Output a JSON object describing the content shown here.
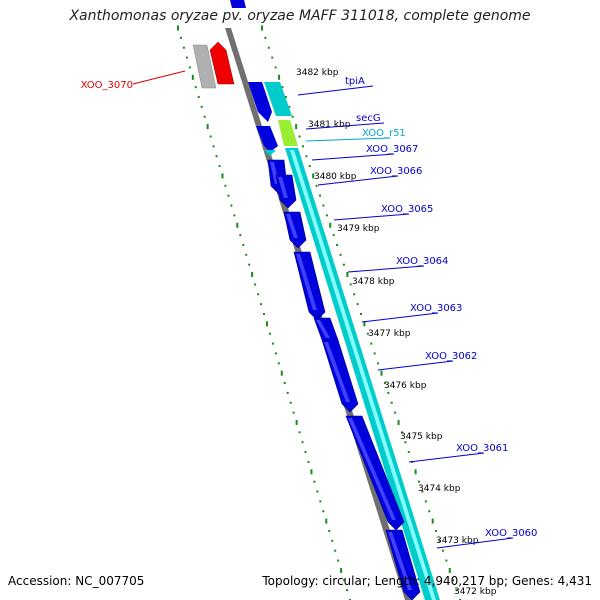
{
  "title": "Xanthomonas oryzae pv. oryzae MAFF 311018, complete genome",
  "accession": "Accession: NC_007705",
  "stats": "Topology: circular; Length: 4,940,217 bp; Genes: 4,431",
  "colors": {
    "cds": "#0000dd",
    "cds_dark": "#000088",
    "cds_light": "#4040ff",
    "rna": "#00cccc",
    "rna_light": "#88ffff",
    "gene_label": "#0000cc",
    "rna_label": "#00aacc",
    "highlight_label": "#dd0000",
    "highlight": "#ee0000",
    "grey": "#b0b0b0",
    "tick": "#1a8a1a",
    "backbone": "#707070",
    "secG": "#99ee33"
  },
  "scale_labels": [
    "3482 kbp",
    "3481 kbp",
    "3480 kbp",
    "3479 kbp",
    "3478 kbp",
    "3477 kbp",
    "3476 kbp",
    "3475 kbp",
    "3474 kbp",
    "3473 kbp",
    "3472 kbp"
  ],
  "genes": [
    {
      "label": "XOO_3070",
      "type": "highlight"
    },
    {
      "label": "tpiA",
      "type": "cds"
    },
    {
      "label": "secG",
      "type": "secG"
    },
    {
      "label": "XOO_r51",
      "type": "rna"
    },
    {
      "label": "XOO_3067",
      "type": "cds"
    },
    {
      "label": "XOO_3066",
      "type": "cds"
    },
    {
      "label": "XOO_3065",
      "type": "cds"
    },
    {
      "label": "XOO_3064",
      "type": "cds"
    },
    {
      "label": "XOO_3063",
      "type": "cds"
    },
    {
      "label": "XOO_3062",
      "type": "cds"
    },
    {
      "label": "XOO_3061",
      "type": "cds"
    },
    {
      "label": "XOO_3060",
      "type": "cds"
    }
  ]
}
